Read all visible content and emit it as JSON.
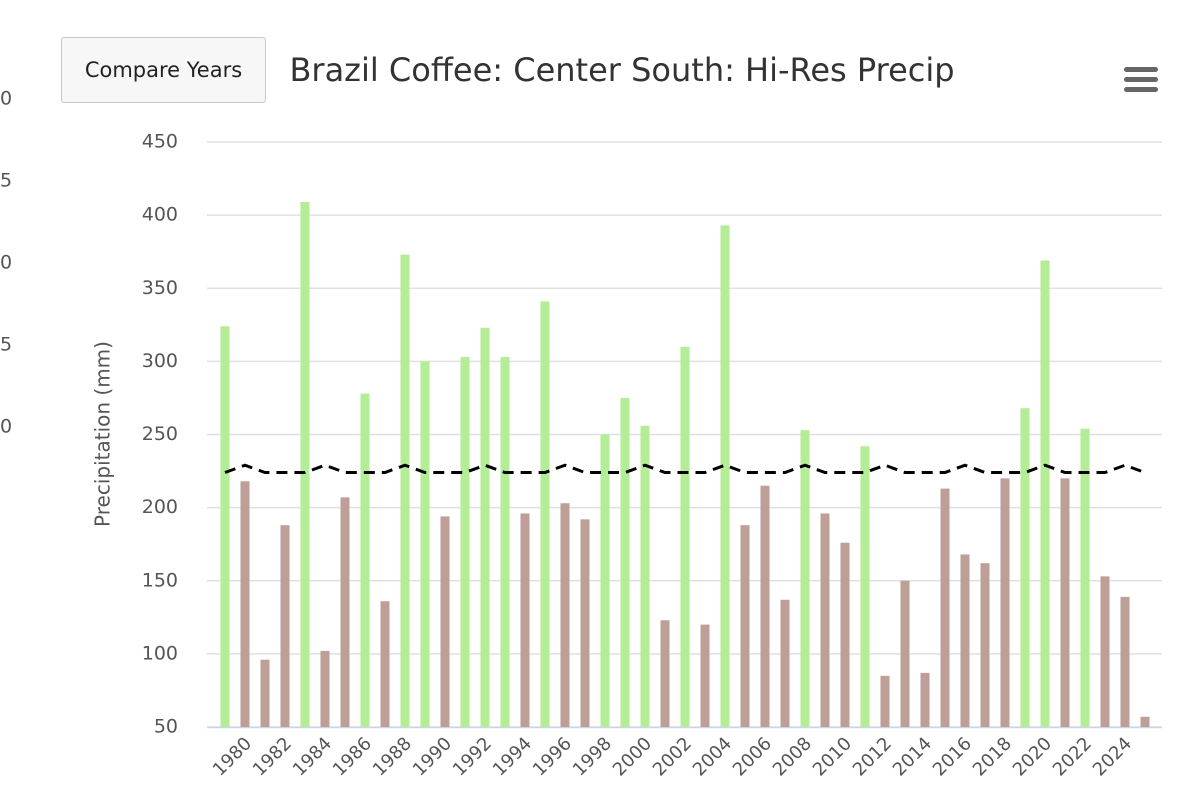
{
  "chart_data": {
    "type": "bar",
    "title": "Brazil Coffee: Center South: Hi-Res Precip",
    "y_label": "Precipitation (mm)",
    "button": "Compare Years",
    "left_axis_fragments": [
      "0",
      "5",
      "0",
      "5",
      "0"
    ],
    "categories": [
      null,
      "1980",
      null,
      "1982",
      null,
      "1984",
      null,
      "1986",
      null,
      "1988",
      null,
      "1990",
      null,
      "1992",
      null,
      "1994",
      null,
      "1996",
      null,
      "1998",
      null,
      "2000",
      null,
      "2002",
      null,
      "2004",
      null,
      "2006",
      null,
      "2008",
      null,
      "2010",
      null,
      "2012",
      null,
      "2014",
      null,
      "2016",
      null,
      "2018",
      null,
      "2020",
      null,
      "2022",
      null,
      "2024",
      null
    ],
    "series": [
      {
        "values": [
          324,
          218,
          96,
          188,
          409,
          102,
          207,
          278,
          136,
          373,
          300,
          194,
          303,
          323,
          303,
          196,
          341,
          203,
          192,
          250,
          275,
          256,
          123,
          310,
          120,
          393,
          188,
          215,
          137,
          253,
          196,
          176,
          242,
          85,
          150,
          87,
          213,
          168,
          162,
          220,
          268,
          369,
          220,
          254,
          153,
          139,
          57
        ],
        "above_color": "#b3ee96",
        "below_color": "#bd9f98"
      },
      {
        "type": "line",
        "color": "#000000",
        "dashed": true,
        "values": [
          224,
          229,
          224,
          224,
          224,
          229,
          224,
          224,
          224,
          229,
          224,
          224,
          224,
          229,
          224,
          224,
          224,
          229,
          224,
          224,
          224,
          229,
          224,
          224,
          224,
          229,
          224,
          224,
          224,
          229,
          224,
          224,
          224,
          229,
          224,
          224,
          224,
          229,
          224,
          224,
          224,
          229,
          224,
          224,
          224,
          229,
          224
        ]
      }
    ],
    "ylim": [
      50,
      450
    ],
    "yticks": [
      50,
      100,
      150,
      200,
      250,
      300,
      350,
      400,
      450
    ],
    "grid": true
  }
}
